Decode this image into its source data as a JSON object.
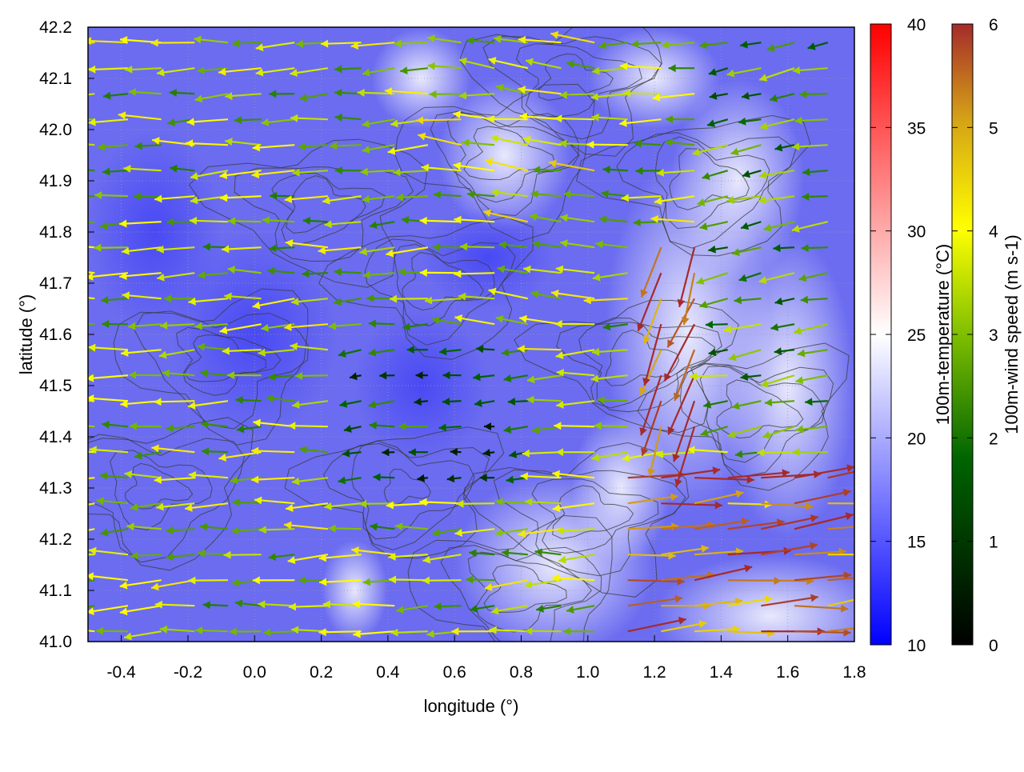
{
  "chart_data": {
    "type": "heatmap",
    "subtype": "vector-field-over-temperature-map",
    "title": "",
    "xlabel": "longitude (°)",
    "ylabel": "latitude (°)",
    "xlim": [
      -0.5,
      1.8
    ],
    "ylim": [
      41.0,
      42.2
    ],
    "x_ticks": [
      "-0.4",
      "-0.2",
      "0.0",
      "0.2",
      "0.4",
      "0.6",
      "0.8",
      "1.0",
      "1.2",
      "1.4",
      "1.6",
      "1.8"
    ],
    "y_ticks": [
      "41.0",
      "41.1",
      "41.2",
      "41.3",
      "41.4",
      "41.5",
      "41.6",
      "41.7",
      "41.8",
      "41.9",
      "42.0",
      "42.1",
      "42.2"
    ],
    "grid": true,
    "contours": "terrain contours (dark gray)",
    "colorbar_temperature": {
      "label": "100m-temperature (°C)",
      "range": [
        10,
        40
      ],
      "ticks": [
        "10",
        "15",
        "20",
        "25",
        "30",
        "35",
        "40"
      ],
      "colors": [
        "#0000ff",
        "#ffffff",
        "#ff0000"
      ]
    },
    "colorbar_wind": {
      "label": "100m-wind speed (m s-1)",
      "range": [
        0,
        6
      ],
      "ticks": [
        "0",
        "1",
        "2",
        "3",
        "4",
        "5",
        "6"
      ],
      "colors": [
        "#000000",
        "#006400",
        "#7fbf00",
        "#ffff00",
        "#d4a017",
        "#a52a2a"
      ]
    },
    "temperature_field_note": "mostly 15–22 °C, bluest in west and center, whitish near 1.2–1.6° lon",
    "wind_regions": [
      {
        "lon": [
          -0.5,
          0.6
        ],
        "lat": [
          41.0,
          42.2
        ],
        "dir_deg": 182,
        "speed": 3.2
      },
      {
        "lon": [
          0.6,
          1.1
        ],
        "lat": [
          41.6,
          42.2
        ],
        "dir_deg": 175,
        "speed": 3.5
      },
      {
        "lon": [
          0.3,
          0.9
        ],
        "lat": [
          41.3,
          41.6
        ],
        "dir_deg": 185,
        "speed": 1.5
      },
      {
        "lon": [
          1.2,
          1.5
        ],
        "lat": [
          41.4,
          41.8
        ],
        "dir_deg": 250,
        "speed": 5.6
      },
      {
        "lon": [
          1.1,
          1.8
        ],
        "lat": [
          41.0,
          41.35
        ],
        "dir_deg": 5,
        "speed": 5.4
      },
      {
        "lon": [
          1.4,
          1.8
        ],
        "lat": [
          41.4,
          42.2
        ],
        "dir_deg": 190,
        "speed": 2.5
      }
    ]
  }
}
